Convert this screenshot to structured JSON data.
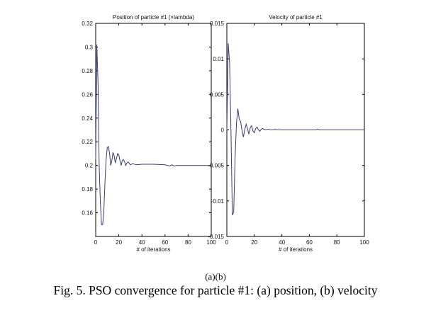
{
  "figure": {
    "subpanel_label": "(a)(b)",
    "caption": "Fig. 5. PSO convergence for particle #1: (a) position, (b) velocity"
  },
  "chart_data": [
    {
      "type": "line",
      "title": "Position of particle #1 (×lambda)",
      "xlabel": "# of iterations",
      "ylabel": "",
      "xlim": [
        0,
        100
      ],
      "ylim": [
        0.14,
        0.32
      ],
      "xticks": [
        "0",
        "20",
        "40",
        "60",
        "80",
        "100"
      ],
      "yticks": [
        "0.16",
        "0.18",
        "0.2",
        "0.22",
        "0.24",
        "0.26",
        "0.28",
        "0.3",
        "0.32"
      ],
      "xtick_values": [
        0,
        20,
        40,
        60,
        80,
        100
      ],
      "ytick_values": [
        0.16,
        0.18,
        0.2,
        0.22,
        0.24,
        0.26,
        0.28,
        0.3,
        0.32
      ],
      "grid": false,
      "series": [
        {
          "name": "position",
          "color": "#3a3a78",
          "x": [
            0,
            1,
            2,
            3,
            4,
            5,
            6,
            7,
            8,
            9,
            10,
            11,
            12,
            13,
            14,
            15,
            16,
            17,
            18,
            19,
            20,
            21,
            22,
            23,
            24,
            25,
            26,
            27,
            28,
            30,
            32,
            35,
            40,
            50,
            60,
            64,
            66,
            68,
            70,
            80,
            90,
            100
          ],
          "y": [
            0.205,
            0.302,
            0.27,
            0.2,
            0.17,
            0.15,
            0.15,
            0.16,
            0.185,
            0.205,
            0.215,
            0.216,
            0.21,
            0.2,
            0.204,
            0.211,
            0.208,
            0.202,
            0.206,
            0.21,
            0.209,
            0.204,
            0.2,
            0.204,
            0.205,
            0.203,
            0.2,
            0.202,
            0.203,
            0.2005,
            0.2015,
            0.2005,
            0.201,
            0.201,
            0.2005,
            0.1995,
            0.2005,
            0.1995,
            0.2,
            0.2,
            0.2,
            0.2
          ]
        }
      ]
    },
    {
      "type": "line",
      "title": "Velocity of particle #1",
      "xlabel": "# of iterations",
      "ylabel": "",
      "xlim": [
        0,
        100
      ],
      "ylim": [
        -0.015,
        0.015
      ],
      "xticks": [
        "0",
        "20",
        "40",
        "60",
        "80",
        "100"
      ],
      "yticks": [
        "-0.015",
        "-0.01",
        "-0.005",
        "0",
        "0.005",
        "0.01",
        "0.015"
      ],
      "xtick_values": [
        0,
        20,
        40,
        60,
        80,
        100
      ],
      "ytick_values": [
        -0.015,
        -0.01,
        -0.005,
        0,
        0.005,
        0.01,
        0.015
      ],
      "grid": false,
      "series": [
        {
          "name": "velocity",
          "color": "#3a3a78",
          "x": [
            0,
            1,
            2,
            3,
            4,
            5,
            6,
            7,
            8,
            9,
            10,
            11,
            12,
            13,
            14,
            15,
            16,
            17,
            18,
            19,
            20,
            21,
            22,
            23,
            24,
            25,
            26,
            28,
            30,
            32,
            35,
            40,
            50,
            60,
            65,
            66,
            67,
            70,
            80,
            90,
            100
          ],
          "y": [
            0.0,
            0.0122,
            0.0095,
            0.0,
            -0.012,
            -0.0115,
            -0.004,
            0.001,
            0.003,
            0.0015,
            0.0012,
            0.0,
            -0.001,
            0.0,
            0.0008,
            0.0002,
            -0.0006,
            0.0003,
            0.0006,
            -0.0002,
            -0.0004,
            0.0002,
            0.0004,
            0.0,
            -0.0002,
            0.0001,
            0.0002,
            0.0,
            0.0001,
            0.0,
            5e-05,
            0.0,
            0.0,
            0.0,
            0.0,
            0.0001,
            0.0,
            0.0,
            0.0,
            0.0,
            0.0
          ]
        }
      ]
    }
  ]
}
